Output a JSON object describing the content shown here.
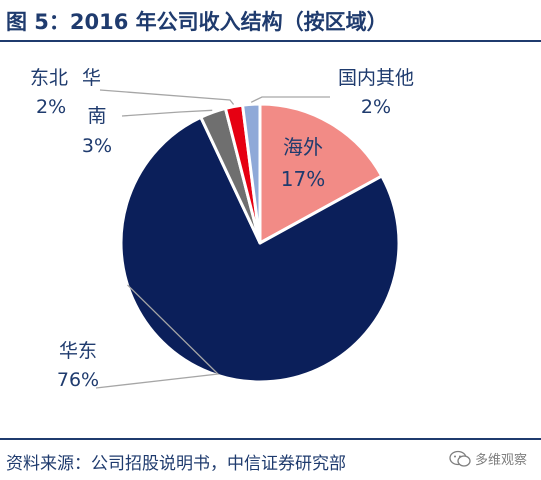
{
  "header": {
    "title": "图 5：2016 年公司收入结构（按区域）"
  },
  "footer": {
    "source": "资料来源：公司招股说明书，中信证券研究部",
    "watermark": "多维观察"
  },
  "chart_data": {
    "type": "pie",
    "start_angle_deg": 0,
    "direction": "clockwise",
    "slices": [
      {
        "name": "海外",
        "value": 17,
        "label": "17%",
        "color": "#f28b86"
      },
      {
        "name": "华东",
        "value": 76,
        "label": "76%",
        "color": "#0b1f5a"
      },
      {
        "name": "南",
        "value": 3,
        "label": "3%",
        "color": "#6f6f6f"
      },
      {
        "name": "华",
        "value": 2,
        "label": "2%",
        "color": "#e60012"
      },
      {
        "name": "国内其他",
        "value": 2,
        "label": "2%",
        "color": "#8fa9d8"
      }
    ],
    "outside_labels": {
      "ne": {
        "line1": "国内其他",
        "line2": "2%"
      },
      "nw": {
        "line1": "东北",
        "line1b": "华",
        "line2": "2%"
      },
      "w": {
        "line1": "南",
        "line2": "3%"
      },
      "sw": {
        "line1": "华东",
        "line2": "76%"
      }
    }
  }
}
